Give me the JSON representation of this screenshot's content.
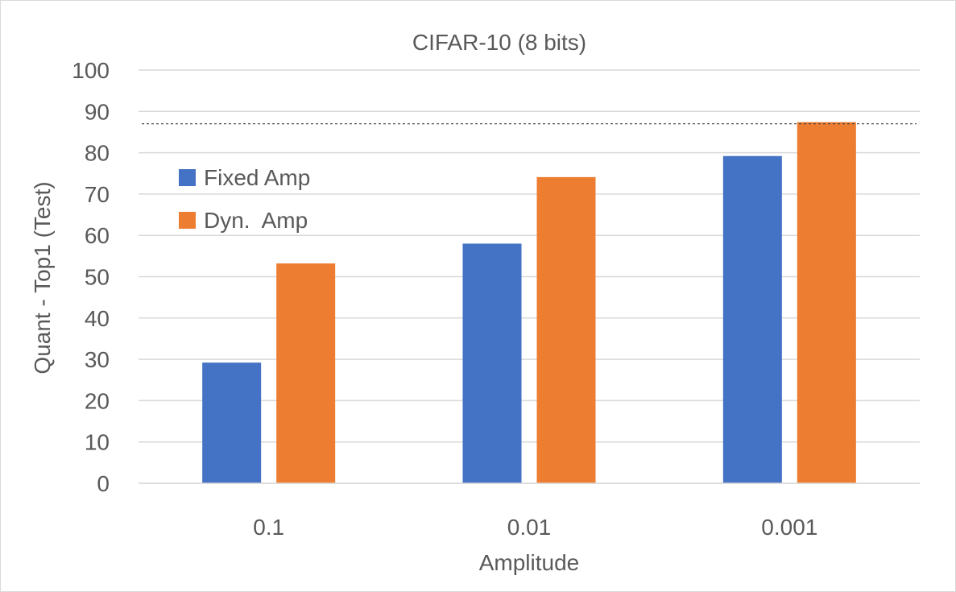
{
  "chart_data": {
    "type": "bar",
    "title": "CIFAR-10 (8 bits)",
    "xlabel": "Amplitude",
    "ylabel": "Quant - Top1 (Test)",
    "categories": [
      "0.1",
      "0.01",
      "0.001"
    ],
    "series": [
      {
        "name": "Fixed Amp",
        "values": [
          29.2,
          58.0,
          79.2
        ],
        "color": "#4472c4"
      },
      {
        "name": "Dyn.  Amp",
        "values": [
          53.2,
          74.1,
          87.4
        ],
        "color": "#ed7d31"
      }
    ],
    "ylim": [
      0,
      100
    ],
    "yticks": [
      "0",
      "10",
      "20",
      "30",
      "40",
      "50",
      "60",
      "70",
      "80",
      "90",
      "100"
    ],
    "grid": true,
    "reference_line": {
      "y": 87.0,
      "style": "dashed",
      "color": "#404040"
    },
    "legend": {
      "position": "upper-left"
    }
  }
}
